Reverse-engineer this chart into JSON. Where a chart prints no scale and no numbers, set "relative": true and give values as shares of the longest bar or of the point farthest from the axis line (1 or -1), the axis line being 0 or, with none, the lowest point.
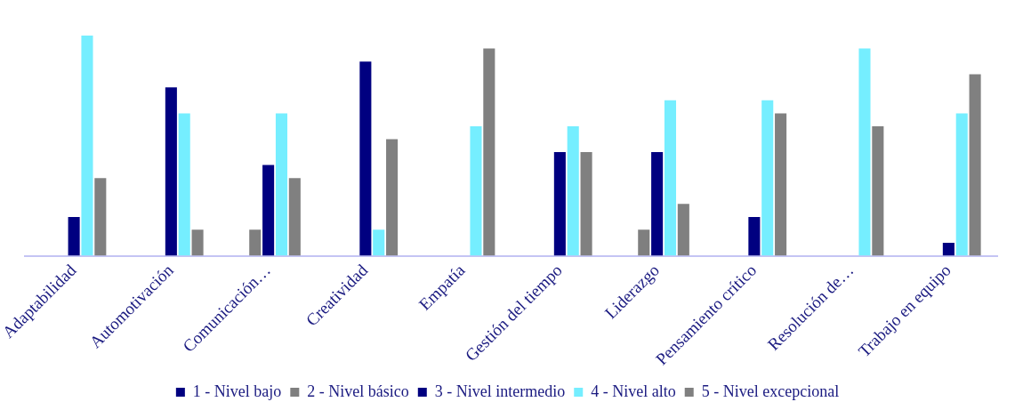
{
  "chart_data": {
    "type": "bar",
    "relative": true,
    "categories": [
      "Adaptabilidad",
      "Automotivación",
      "Comunicación…",
      "Creatividad",
      "Empatía",
      "Gestión del tiempo",
      "Liderazgo",
      "Pensamiento crítico",
      "Resolución de…",
      "Trabajo en equipo"
    ],
    "series": [
      {
        "name": "1 - Nivel bajo",
        "color": "#000080",
        "values": [
          0,
          0,
          0,
          0,
          0,
          0,
          0,
          0,
          0,
          0
        ]
      },
      {
        "name": "2 - Nivel básico",
        "color": "#7f7f7f",
        "values": [
          0,
          0,
          0.118,
          0,
          0,
          0,
          0.118,
          0,
          0,
          0
        ]
      },
      {
        "name": "3 - Nivel intermedio",
        "color": "#000080",
        "values": [
          0.176,
          0.765,
          0.412,
          0.882,
          0,
          0.471,
          0.471,
          0.176,
          0,
          0.059
        ]
      },
      {
        "name": "4 - Nivel alto",
        "color": "#75eeff",
        "values": [
          1,
          0.647,
          0.647,
          0.118,
          0.588,
          0.588,
          0.706,
          0.706,
          0.941,
          0.647
        ]
      },
      {
        "name": "5 - Nivel excepcional",
        "color": "#808080",
        "values": [
          0.353,
          0.118,
          0.353,
          0.529,
          0.941,
          0.471,
          0.235,
          0.647,
          0.588,
          0.824
        ]
      }
    ],
    "grid": false,
    "legend": "bottom"
  }
}
